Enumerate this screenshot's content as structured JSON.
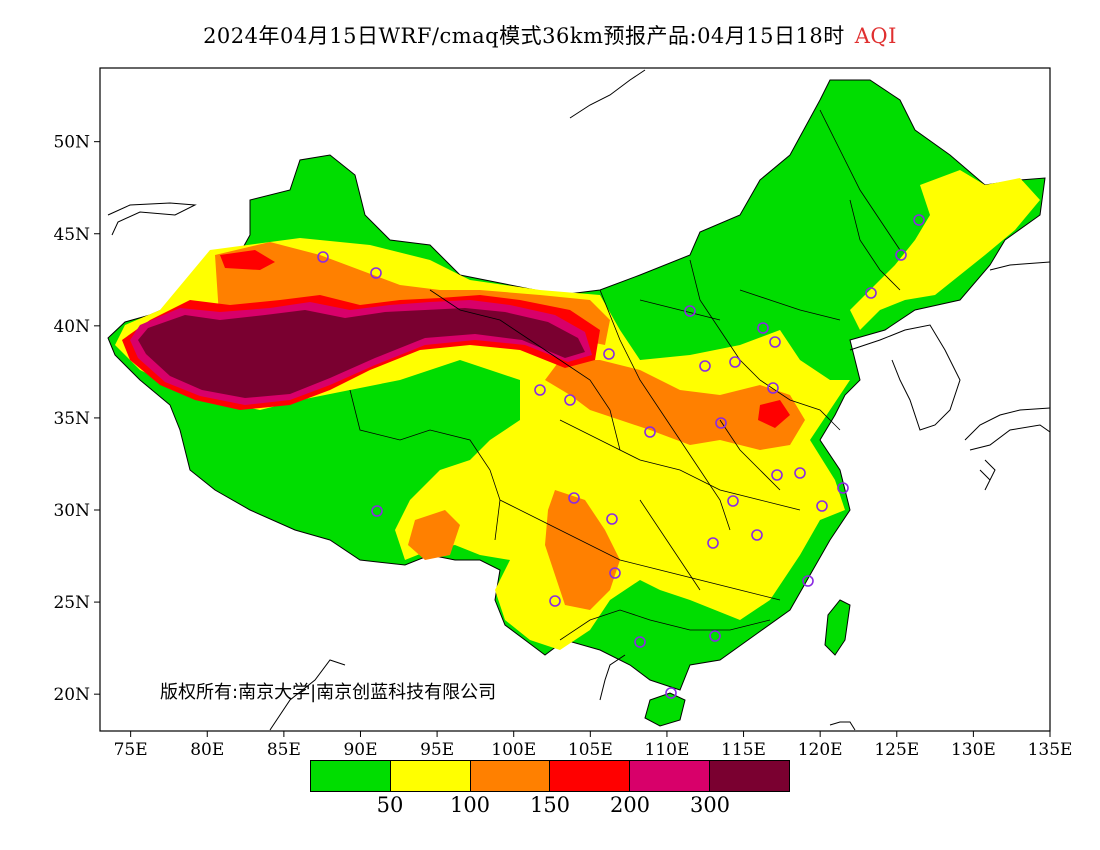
{
  "title": {
    "main": "2024年04月15日WRF/cmaq模式36km预报产品:04月15日18时",
    "variable": "AQI",
    "variable_color": "#e03030"
  },
  "axes": {
    "x_ticks": [
      "75E",
      "80E",
      "85E",
      "90E",
      "95E",
      "100E",
      "105E",
      "110E",
      "115E",
      "120E",
      "125E",
      "130E",
      "135E"
    ],
    "y_ticks": [
      "20N",
      "25N",
      "30N",
      "35N",
      "40N",
      "45N",
      "50N"
    ],
    "lon_range": [
      73,
      135
    ],
    "lat_range": [
      18,
      54
    ]
  },
  "copyright": "版权所有:南京大学|南京创蓝科技有限公司",
  "legend": {
    "colors": [
      "#00dd00",
      "#ffff00",
      "#ff8000",
      "#ff0000",
      "#d8006a",
      "#7a0030"
    ],
    "labels": [
      "50",
      "100",
      "150",
      "200",
      "300"
    ]
  },
  "colors": {
    "good": "#00dd00",
    "moderate": "#ffff00",
    "usg": "#ff8000",
    "unhealthy": "#ff0000",
    "very_unhealthy": "#d8006a",
    "hazardous": "#7a0030",
    "station_marker": "#8a2be2"
  }
}
